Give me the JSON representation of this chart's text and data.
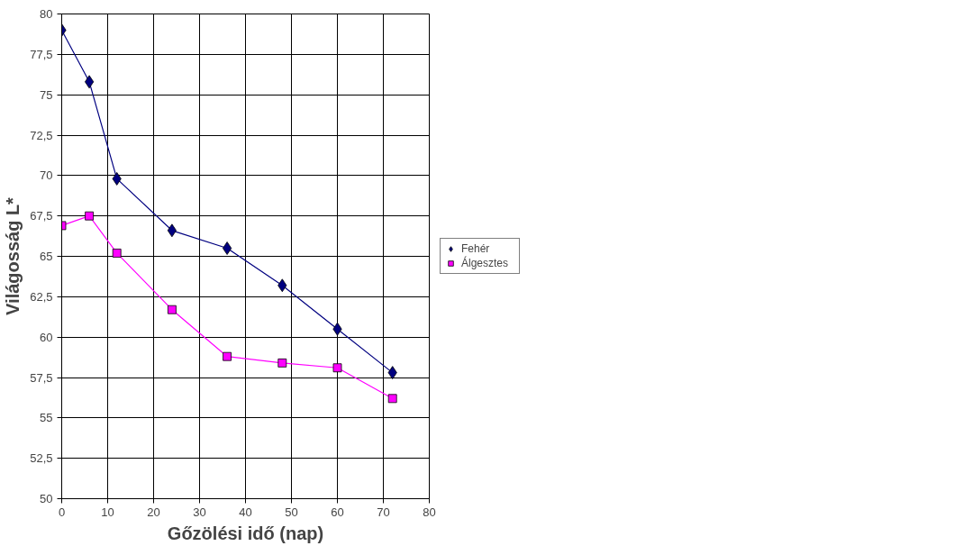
{
  "chart_data": {
    "type": "line",
    "xlabel": "Gőzölési idő (nap)",
    "ylabel": "Világosság L*",
    "x": [
      0,
      6,
      12,
      24,
      36,
      48,
      60,
      72
    ],
    "series": [
      {
        "name": "Fehér",
        "color": "#000080",
        "marker": "diamond",
        "values": [
          79.0,
          75.8,
          69.8,
          66.6,
          65.5,
          63.2,
          60.5,
          57.8
        ]
      },
      {
        "name": "Álgesztes",
        "color": "#ff00ff",
        "marker": "square",
        "values": [
          66.9,
          67.5,
          65.2,
          61.7,
          58.8,
          58.4,
          58.1,
          56.2
        ]
      }
    ],
    "xlim": [
      0,
      80
    ],
    "xticks": [
      0,
      10,
      20,
      30,
      40,
      50,
      60,
      70,
      80
    ],
    "ylim": [
      50,
      80
    ],
    "yticks": [
      50,
      {
        "value": 52.5,
        "label": "52,5"
      },
      55,
      {
        "value": 57.5,
        "label": "57,5"
      },
      60,
      {
        "value": 62.5,
        "label": "62,5"
      },
      65,
      {
        "value": 67.5,
        "label": "67,5"
      },
      70,
      {
        "value": 72.5,
        "label": "72,5"
      },
      75,
      {
        "value": 77.5,
        "label": "77,5"
      },
      80
    ],
    "grid": true,
    "legend": "right",
    "line_style": "solid"
  }
}
